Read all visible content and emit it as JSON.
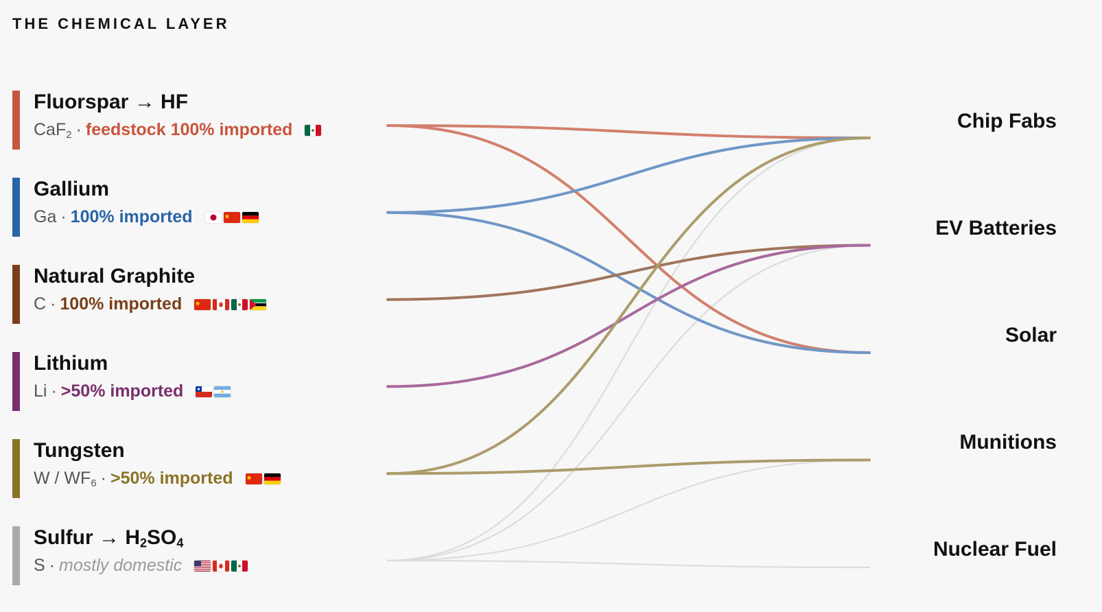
{
  "header": {
    "title": "THE CHEMICAL LAYER"
  },
  "materials": [
    {
      "name_html": "Fluorspar → HF",
      "formula_html": "CaF<sub class=\"chem\">2</sub>",
      "status": "feedstock 100% imported",
      "color": "#c8553d",
      "status_style": "bold",
      "flags": [
        "mexico"
      ]
    },
    {
      "name_html": "Gallium",
      "formula_html": "Ga",
      "status": "100% imported",
      "color": "#2a64a8",
      "status_style": "bold",
      "flags": [
        "japan",
        "china",
        "germany"
      ]
    },
    {
      "name_html": "Natural Graphite",
      "formula_html": "C",
      "status": "100% imported",
      "color": "#7a3f1a",
      "status_style": "bold",
      "flags": [
        "china",
        "canada",
        "mexico",
        "mozambique"
      ]
    },
    {
      "name_html": "Lithium",
      "formula_html": "Li",
      "status": ">50% imported",
      "color": "#7a2e6e",
      "status_style": "bold",
      "flags": [
        "chile",
        "argentina"
      ]
    },
    {
      "name_html": "Tungsten",
      "formula_html": "W / WF<sub class=\"chem\">6</sub>",
      "status": ">50% imported",
      "color": "#8b7328",
      "status_style": "bold",
      "flags": [
        "china",
        "germany"
      ]
    },
    {
      "name_html": "Sulfur → H<sub class=\"chem\">2</sub>SO<sub class=\"chem\">4</sub>",
      "formula_html": "S",
      "status": "mostly domestic",
      "color": "#aaaaaa",
      "status_style": "italic",
      "flags": [
        "usa",
        "canada",
        "mexico"
      ]
    }
  ],
  "destinations": [
    "Chip Fabs",
    "EV Batteries",
    "Solar",
    "Munitions",
    "Nuclear Fuel"
  ],
  "flows": [
    {
      "from": 0,
      "to": 0,
      "color": "#d2806d"
    },
    {
      "from": 0,
      "to": 2,
      "color": "#d2806d"
    },
    {
      "from": 1,
      "to": 0,
      "color": "#6f97c6"
    },
    {
      "from": 1,
      "to": 2,
      "color": "#6f97c6"
    },
    {
      "from": 2,
      "to": 1,
      "color": "#a0755d"
    },
    {
      "from": 3,
      "to": 1,
      "color": "#a86a9e"
    },
    {
      "from": 4,
      "to": 0,
      "color": "#ab9d6c"
    },
    {
      "from": 4,
      "to": 3,
      "color": "#ab9d6c"
    },
    {
      "from": 5,
      "to": 0,
      "color": "#dcdcdc"
    },
    {
      "from": 5,
      "to": 1,
      "color": "#dcdcdc"
    },
    {
      "from": 5,
      "to": 3,
      "color": "#dcdcdc"
    },
    {
      "from": 5,
      "to": 4,
      "color": "#dcdcdc"
    }
  ]
}
